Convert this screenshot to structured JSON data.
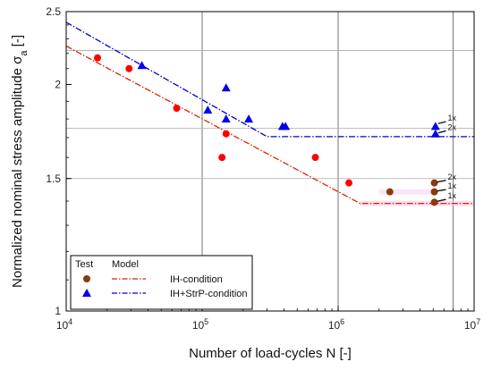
{
  "chart_data": {
    "type": "scatter",
    "xlabel": "Number of load-cycles N [-]",
    "ylabel_main": "Normalized nominal stress amplitude σ",
    "ylabel_sub": "a",
    "ylabel_unit": " [-]",
    "x_scale": "log",
    "y_scale": "log",
    "xlim": [
      10000,
      10000000
    ],
    "ylim": [
      1,
      2.5
    ],
    "x_ticks": [
      {
        "value": 10000,
        "mantissa": "10",
        "exp": "4"
      },
      {
        "value": 100000,
        "mantissa": "10",
        "exp": "5"
      },
      {
        "value": 1000000,
        "mantissa": "10",
        "exp": "6"
      },
      {
        "value": 10000000,
        "mantissa": "10",
        "exp": "7"
      }
    ],
    "y_ticks": [
      {
        "value": 1,
        "label": "1"
      },
      {
        "value": 1.5,
        "label": "1.5"
      },
      {
        "value": 2,
        "label": "2"
      },
      {
        "value": 2.5,
        "label": "2.5"
      }
    ],
    "grid": {
      "vertical": [
        100000,
        1000000,
        7000000
      ],
      "horizontal": [
        1.5,
        1.75,
        2.22
      ]
    },
    "series": [
      {
        "group": "Test",
        "marker": "circle",
        "color": "#ff0000",
        "points": [
          [
            17000,
            2.17
          ],
          [
            29000,
            2.1
          ],
          [
            65000,
            1.86
          ],
          [
            150000,
            1.72
          ],
          [
            140000,
            1.6
          ],
          [
            680000,
            1.6
          ],
          [
            1200000,
            1.48
          ]
        ]
      },
      {
        "group": "Test",
        "marker": "circle",
        "color": "#8b3a0f",
        "points": [
          [
            2400000,
            1.44
          ],
          [
            5100000,
            1.48
          ],
          [
            5100000,
            1.44
          ],
          [
            5100000,
            1.395
          ]
        ]
      },
      {
        "group": "Test",
        "marker": "triangle",
        "color": "#0000ee",
        "points": [
          [
            36000,
            2.12
          ],
          [
            110000,
            1.85
          ],
          [
            150000,
            1.98
          ],
          [
            150000,
            1.8
          ],
          [
            220000,
            1.8
          ],
          [
            390000,
            1.76
          ],
          [
            410000,
            1.76
          ],
          [
            5200000,
            1.76
          ],
          [
            5200000,
            1.72
          ]
        ]
      }
    ],
    "model_lines": [
      {
        "name": "IH-condition",
        "color": "#dd2200",
        "style": "dash-dot",
        "points": [
          [
            10000,
            2.25
          ],
          [
            1450000,
            1.39
          ],
          [
            10000000,
            1.39
          ]
        ]
      },
      {
        "name": "IH+StrP-condition",
        "color": "#0000cc",
        "style": "dash-dot",
        "points": [
          [
            10000,
            2.42
          ],
          [
            300000,
            1.705
          ],
          [
            10000000,
            1.705
          ]
        ]
      }
    ],
    "annotations": [
      {
        "text": "1x",
        "x": 5200000,
        "y": 1.77,
        "tx": 6300000,
        "ty": 1.795
      },
      {
        "text": "2x",
        "x": 5200000,
        "y": 1.72,
        "tx": 6300000,
        "ty": 1.745
      },
      {
        "text": "2x",
        "x": 5100000,
        "y": 1.48,
        "tx": 6300000,
        "ty": 1.5
      },
      {
        "text": "1x",
        "x": 5100000,
        "y": 1.44,
        "tx": 6300000,
        "ty": 1.458
      },
      {
        "text": "1x",
        "x": 5100000,
        "y": 1.395,
        "tx": 6300000,
        "ty": 1.415
      }
    ],
    "legend": {
      "position": "bottom-left",
      "col_test": "Test",
      "col_model": "Model",
      "entries": [
        {
          "name": "IH-condition",
          "marker": "circle",
          "marker_color": "#8b3a0f",
          "line_color": "#dd2200"
        },
        {
          "name": "IH+StrP-condition",
          "marker": "triangle",
          "marker_color": "#0000ee",
          "line_color": "#0000cc"
        }
      ]
    }
  }
}
